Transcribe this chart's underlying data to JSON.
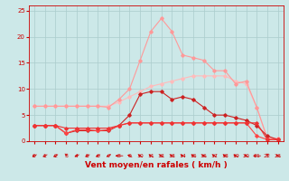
{
  "bg_color": "#cce8e8",
  "grid_color": "#aacccc",
  "xlabel": "Vent moyen/en rafales ( km/h )",
  "xlabel_color": "#cc0000",
  "xlabel_fontsize": 6.5,
  "tick_color": "#cc0000",
  "xlim": [
    -0.5,
    23.5
  ],
  "ylim": [
    0,
    26
  ],
  "xticks": [
    0,
    1,
    2,
    3,
    4,
    5,
    6,
    7,
    8,
    9,
    10,
    11,
    12,
    13,
    14,
    15,
    16,
    17,
    18,
    19,
    20,
    21,
    22,
    23
  ],
  "yticks": [
    0,
    5,
    10,
    15,
    20,
    25
  ],
  "series": [
    {
      "x": [
        0,
        1,
        2,
        3,
        4,
        5,
        6,
        7,
        8,
        9,
        10,
        11,
        12,
        13,
        14,
        15,
        16,
        17,
        18,
        19,
        20,
        21,
        22,
        23
      ],
      "y": [
        6.7,
        6.7,
        6.7,
        6.7,
        6.7,
        6.7,
        6.7,
        6.7,
        7.5,
        8.5,
        9.5,
        10.5,
        11.0,
        11.5,
        12.0,
        12.5,
        12.5,
        12.5,
        12.5,
        11.5,
        11.0,
        6.5,
        0.5,
        0.5
      ],
      "color": "#ffbbbb",
      "linewidth": 0.8,
      "marker": "D",
      "markersize": 1.8
    },
    {
      "x": [
        0,
        1,
        2,
        3,
        4,
        5,
        6,
        7,
        8,
        9,
        10,
        11,
        12,
        13,
        14,
        15,
        16,
        17,
        18,
        19,
        20,
        21,
        22,
        23
      ],
      "y": [
        6.7,
        6.7,
        6.7,
        6.7,
        6.7,
        6.7,
        6.7,
        6.5,
        8.0,
        10.0,
        15.5,
        21.0,
        23.5,
        21.0,
        16.5,
        16.0,
        15.5,
        13.5,
        13.5,
        11.0,
        11.5,
        6.5,
        0.5,
        0.5
      ],
      "color": "#ff9999",
      "linewidth": 0.8,
      "marker": "D",
      "markersize": 1.8
    },
    {
      "x": [
        0,
        1,
        2,
        3,
        4,
        5,
        6,
        7,
        8,
        9,
        10,
        11,
        12,
        13,
        14,
        15,
        16,
        17,
        18,
        19,
        20,
        21,
        22,
        23
      ],
      "y": [
        3.0,
        3.0,
        3.0,
        1.5,
        2.0,
        2.0,
        2.0,
        2.0,
        3.0,
        5.0,
        9.0,
        9.5,
        9.5,
        8.0,
        8.5,
        8.0,
        6.5,
        5.0,
        5.0,
        4.5,
        4.0,
        3.0,
        1.0,
        0.3
      ],
      "color": "#cc2222",
      "linewidth": 0.8,
      "marker": "D",
      "markersize": 1.8
    },
    {
      "x": [
        0,
        1,
        2,
        3,
        4,
        5,
        6,
        7,
        8,
        9,
        10,
        11,
        12,
        13,
        14,
        15,
        16,
        17,
        18,
        19,
        20,
        21,
        22,
        23
      ],
      "y": [
        3.0,
        3.0,
        3.0,
        1.5,
        2.2,
        2.2,
        2.0,
        2.2,
        3.0,
        3.5,
        3.5,
        3.5,
        3.5,
        3.5,
        3.5,
        3.5,
        3.5,
        3.5,
        3.5,
        3.5,
        3.5,
        1.0,
        0.3,
        0.3
      ],
      "color": "#ff4444",
      "linewidth": 0.8,
      "marker": "D",
      "markersize": 1.8
    },
    {
      "x": [
        0,
        1,
        2,
        3,
        4,
        5,
        6,
        7,
        8,
        9,
        10,
        11,
        12,
        13,
        14,
        15,
        16,
        17,
        18,
        19,
        20,
        21,
        22,
        23
      ],
      "y": [
        3.0,
        3.0,
        3.0,
        2.5,
        2.5,
        2.5,
        2.5,
        2.5,
        3.0,
        3.5,
        3.5,
        3.5,
        3.5,
        3.5,
        3.5,
        3.5,
        3.5,
        3.5,
        3.5,
        3.5,
        3.5,
        3.5,
        0.3,
        0.3
      ],
      "color": "#ee3333",
      "linewidth": 0.8,
      "marker": "D",
      "markersize": 1.8
    }
  ],
  "arrow_color": "#cc0000",
  "arrow_angles": [
    225,
    225,
    225,
    180,
    225,
    225,
    225,
    225,
    270,
    315,
    315,
    315,
    315,
    315,
    315,
    315,
    315,
    315,
    315,
    315,
    315,
    270,
    180,
    315
  ]
}
